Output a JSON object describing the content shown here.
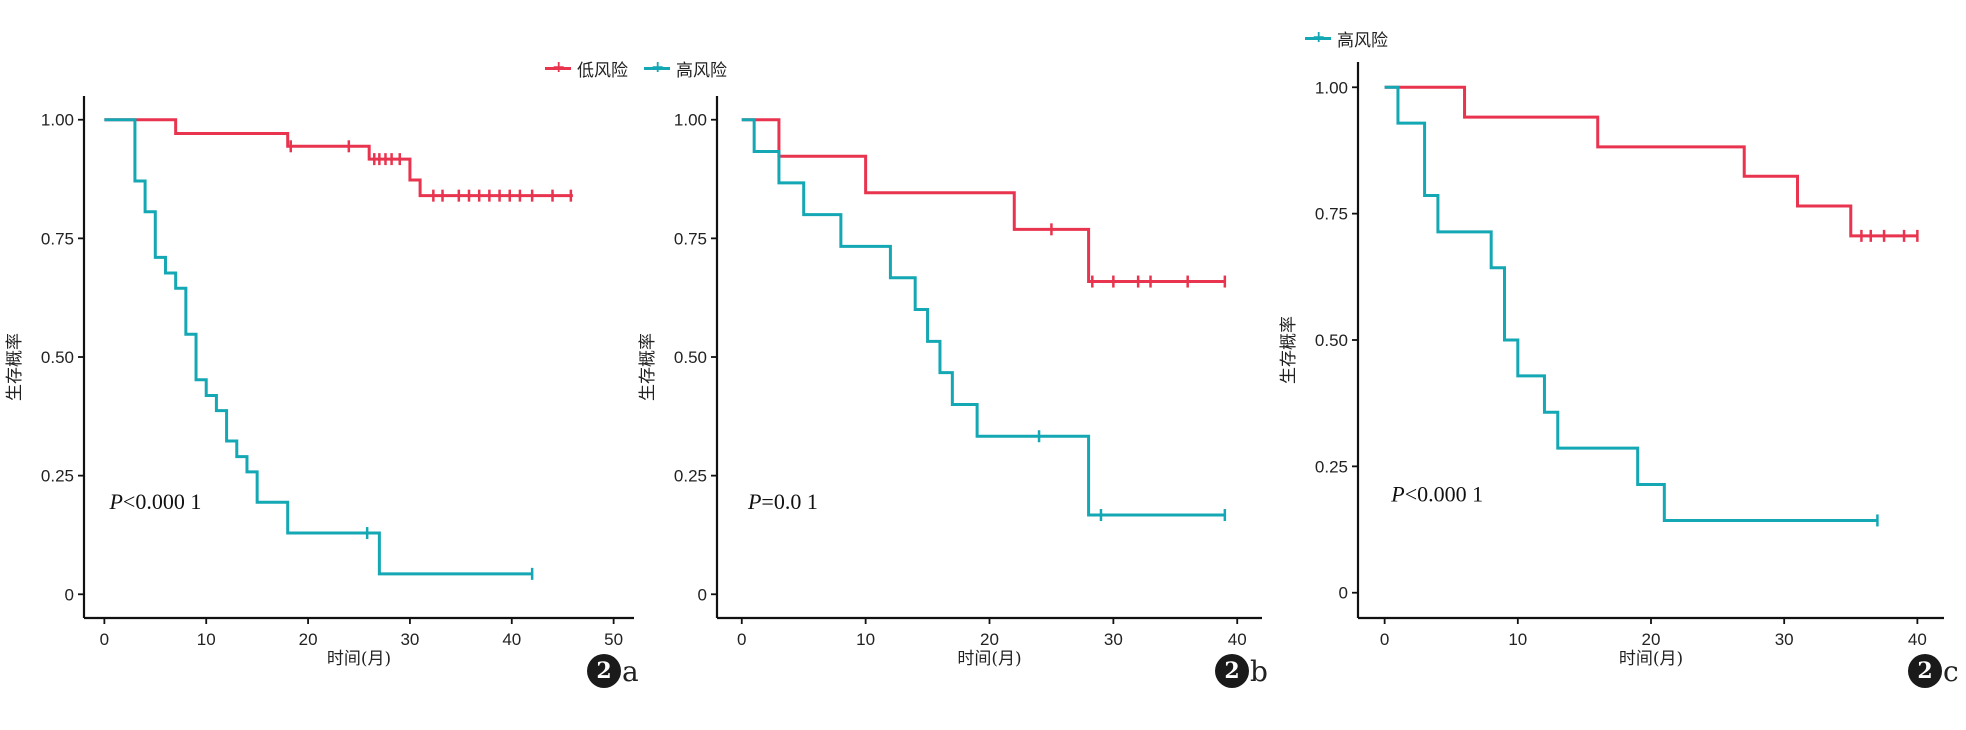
{
  "colors": {
    "low": "#E8344E",
    "high": "#14A7B4"
  },
  "chart_data": [
    {
      "id": "a",
      "type": "line",
      "step": true,
      "panel_label": {
        "number": "2",
        "letter": "a"
      },
      "xlabel": "时间(月)",
      "ylabel": "生存概率",
      "xlim": [
        -2,
        52
      ],
      "ylim": [
        -0.05,
        1.05
      ],
      "xticks": [
        0,
        10,
        20,
        30,
        40,
        50
      ],
      "yticks": [
        0,
        0.25,
        0.5,
        0.75,
        1.0
      ],
      "ytick_labels": [
        "0",
        "0.25",
        "0.50",
        "0.75",
        "1.00"
      ],
      "pvalue_text": {
        "prefix": "P",
        "rest": "<0.000 1"
      },
      "pvalue_pos": [
        0.5,
        0.18
      ],
      "legend": [
        {
          "name": "低风险",
          "color": "#E8344E"
        },
        {
          "name": "高风险",
          "color": "#14A7B4"
        }
      ],
      "series": [
        {
          "name": "低风险",
          "color": "#E8344E",
          "x": [
            0,
            7,
            18,
            26,
            30,
            31,
            46
          ],
          "y": [
            1.0,
            0.971,
            0.944,
            0.917,
            0.873,
            0.84,
            0.84
          ],
          "censor_x": [
            18.3,
            24,
            26.5,
            27,
            27.6,
            28.2,
            29,
            32.3,
            33.2,
            34.8,
            35.8,
            36.8,
            37.8,
            38.8,
            39.8,
            40.8,
            42,
            44,
            45.8
          ]
        },
        {
          "name": "高风险",
          "color": "#14A7B4",
          "x": [
            0,
            3,
            4,
            5,
            6,
            7,
            8,
            9,
            10,
            11,
            12,
            13,
            14,
            15,
            18,
            27,
            42
          ],
          "y": [
            1.0,
            0.871,
            0.806,
            0.71,
            0.677,
            0.645,
            0.548,
            0.452,
            0.419,
            0.387,
            0.323,
            0.29,
            0.258,
            0.194,
            0.129,
            0.043,
            0.043
          ],
          "censor_x": [
            25.8,
            42
          ]
        }
      ]
    },
    {
      "id": "b",
      "type": "line",
      "step": true,
      "panel_label": {
        "number": "2",
        "letter": "b"
      },
      "xlabel": "时间(月)",
      "ylabel": "生存概率",
      "xlim": [
        -2,
        42
      ],
      "ylim": [
        -0.05,
        1.05
      ],
      "xticks": [
        0,
        10,
        20,
        30,
        40
      ],
      "yticks": [
        0,
        0.25,
        0.5,
        0.75,
        1.0
      ],
      "ytick_labels": [
        "0",
        "0.25",
        "0.50",
        "0.75",
        "1.00"
      ],
      "pvalue_text": {
        "prefix": "P",
        "rest": "=0.0 1"
      },
      "pvalue_pos": [
        0.5,
        0.18
      ],
      "series": [
        {
          "name": "低风险",
          "color": "#E8344E",
          "x": [
            0,
            3,
            10,
            22,
            28,
            39
          ],
          "y": [
            1.0,
            0.923,
            0.846,
            0.769,
            0.659,
            0.659
          ],
          "censor_x": [
            25,
            28.3,
            30,
            32,
            33,
            36,
            39
          ]
        },
        {
          "name": "高风险",
          "color": "#14A7B4",
          "x": [
            0,
            1,
            3,
            5,
            8,
            12,
            14,
            15,
            16,
            17,
            19,
            28,
            39
          ],
          "y": [
            1.0,
            0.933,
            0.867,
            0.8,
            0.733,
            0.667,
            0.6,
            0.533,
            0.467,
            0.4,
            0.333,
            0.167,
            0.167
          ],
          "censor_x": [
            24,
            29,
            39
          ]
        }
      ]
    },
    {
      "id": "c",
      "type": "line",
      "step": true,
      "panel_label": {
        "number": "2",
        "letter": "c"
      },
      "xlabel": "时间(月)",
      "ylabel": "生存概率",
      "xlim": [
        -2,
        42
      ],
      "ylim": [
        -0.05,
        1.05
      ],
      "xticks": [
        0,
        10,
        20,
        30,
        40
      ],
      "yticks": [
        0,
        0.25,
        0.5,
        0.75,
        1.0
      ],
      "ytick_labels": [
        "0",
        "0.25",
        "0.50",
        "0.75",
        "1.00"
      ],
      "pvalue_text": {
        "prefix": "P",
        "rest": "<0.000 1"
      },
      "pvalue_pos": [
        0.5,
        0.18
      ],
      "legend": [
        {
          "name": "高风险",
          "color": "#14A7B4"
        }
      ],
      "series": [
        {
          "name": "低风险",
          "color": "#E8344E",
          "x": [
            0,
            6,
            16,
            27,
            31,
            35,
            40
          ],
          "y": [
            1.0,
            0.941,
            0.882,
            0.824,
            0.765,
            0.706,
            0.706
          ],
          "censor_x": [
            35.8,
            36.5,
            37.5,
            39,
            40
          ]
        },
        {
          "name": "高风险",
          "color": "#14A7B4",
          "x": [
            0,
            1,
            3,
            4,
            8,
            9,
            10,
            12,
            13,
            19,
            21,
            37
          ],
          "y": [
            1.0,
            0.929,
            0.786,
            0.714,
            0.643,
            0.5,
            0.429,
            0.357,
            0.286,
            0.214,
            0.143,
            0.143
          ],
          "censor_x": [
            37
          ]
        }
      ]
    }
  ]
}
